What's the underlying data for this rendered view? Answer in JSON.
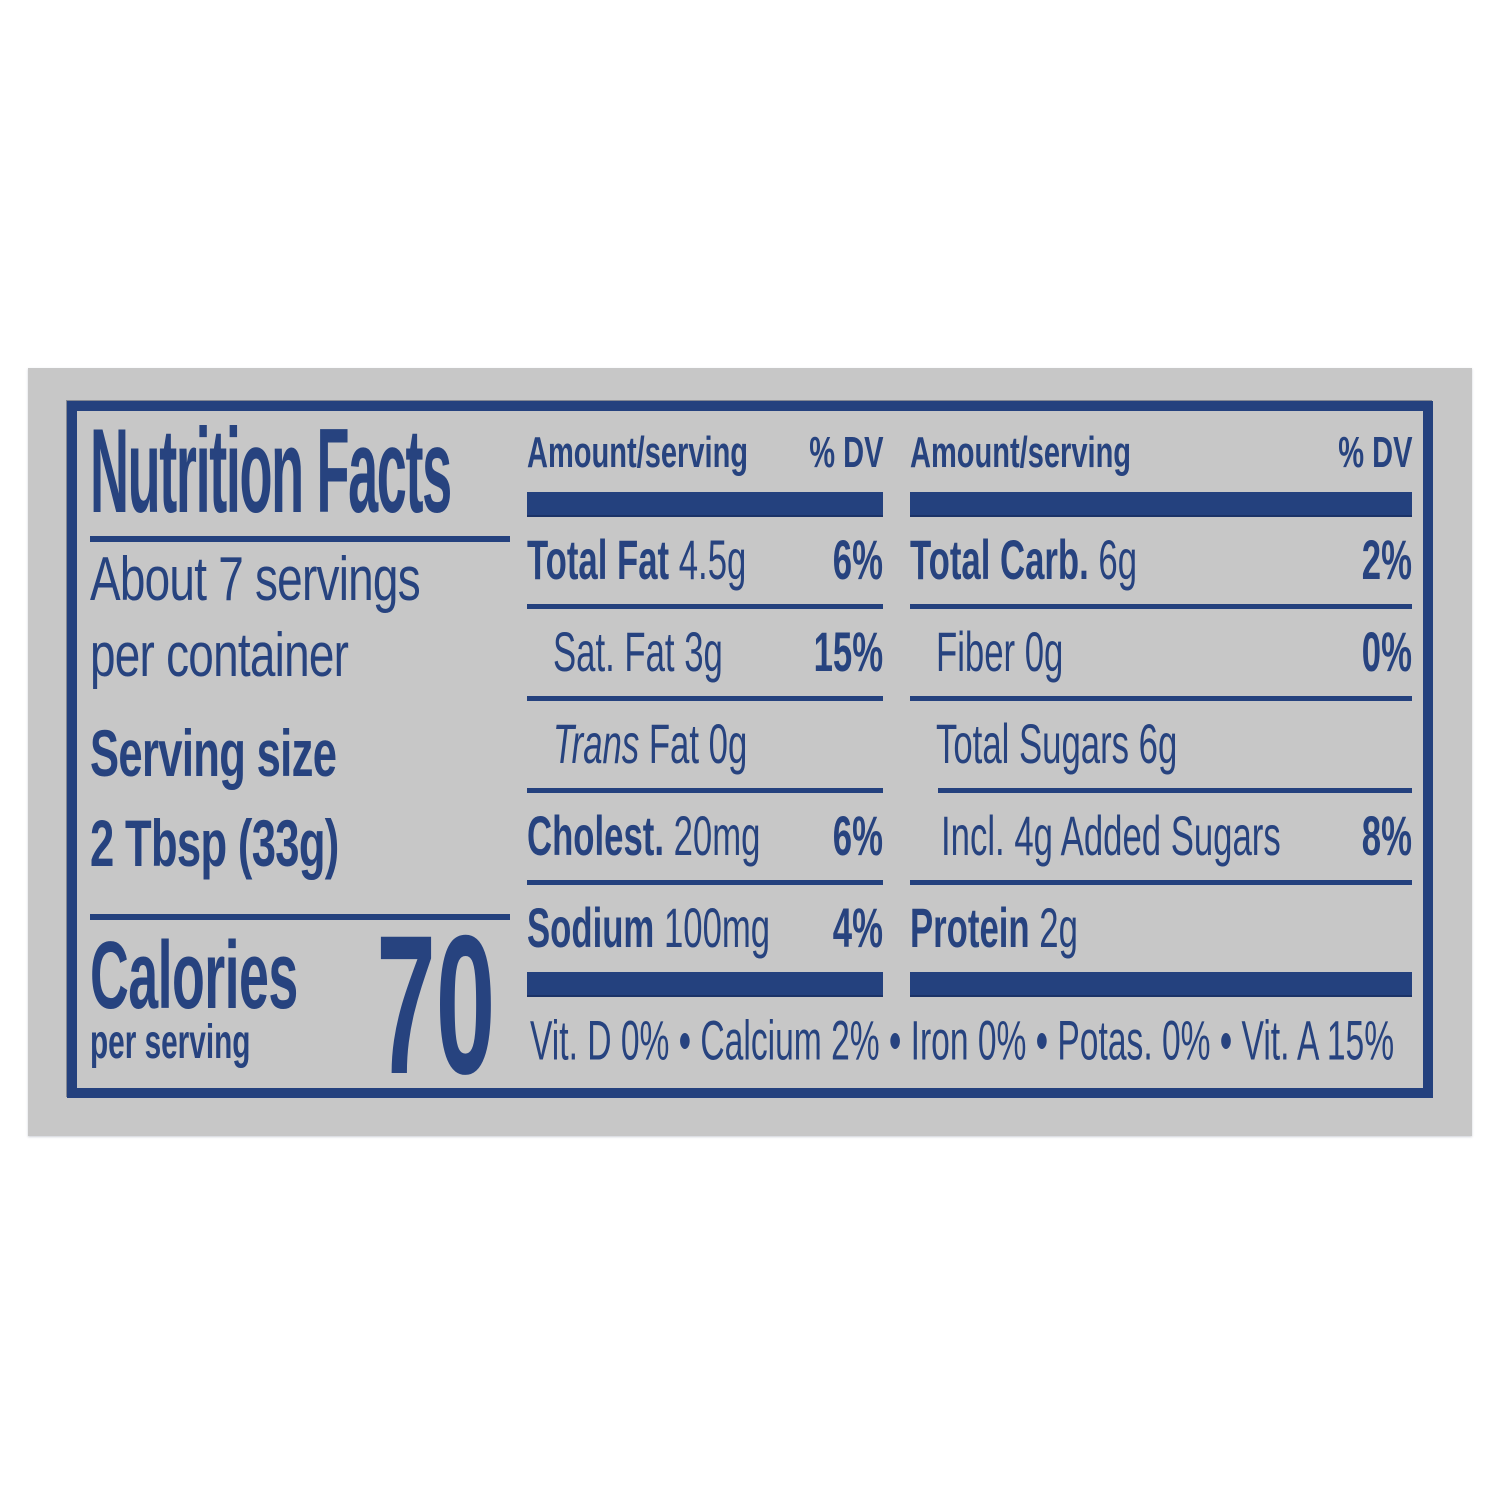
{
  "label": {
    "title": "Nutrition Facts",
    "servings_line1": "About 7 servings",
    "servings_line2": "per container",
    "serving_size_label": "Serving size",
    "serving_size_value": "2 Tbsp (33g)",
    "calories_label": "Calories",
    "calories_sublabel": "per serving",
    "calories_value": "70"
  },
  "columns": [
    {
      "header": {
        "amount": "Amount/serving",
        "dv": "% DV"
      },
      "rows": [
        {
          "bold": "Total Fat",
          "rest": " 4.5g",
          "dv": "6%"
        },
        {
          "rest": "Sat. Fat 3g",
          "dv": "15%"
        },
        {
          "italic": "Trans",
          "rest": " Fat 0g"
        },
        {
          "bold": "Cholest.",
          "rest": " 20mg",
          "dv": "6%"
        },
        {
          "bold": "Sodium",
          "rest": " 100mg",
          "dv": "4%"
        }
      ]
    },
    {
      "header": {
        "amount": "Amount/serving",
        "dv": "% DV"
      },
      "rows": [
        {
          "bold": "Total Carb.",
          "rest": " 6g",
          "dv": "2%"
        },
        {
          "rest": "Fiber 0g",
          "dv": "0%"
        },
        {
          "rest": "Total Sugars 6g"
        },
        {
          "rest": "Incl. 4g Added Sugars",
          "dv": "8%"
        },
        {
          "bold": "Protein",
          "rest": " 2g"
        }
      ]
    }
  ],
  "footer": {
    "bullet": "•",
    "items": [
      "Vit. D 0%",
      "Calcium 2%",
      "Iron 0%",
      "Potas. 0%",
      "Vit. A 15%"
    ]
  },
  "colors": {
    "navy": "#24417e",
    "label_background": "#c7c7c7",
    "page_background": "#ffffff"
  }
}
